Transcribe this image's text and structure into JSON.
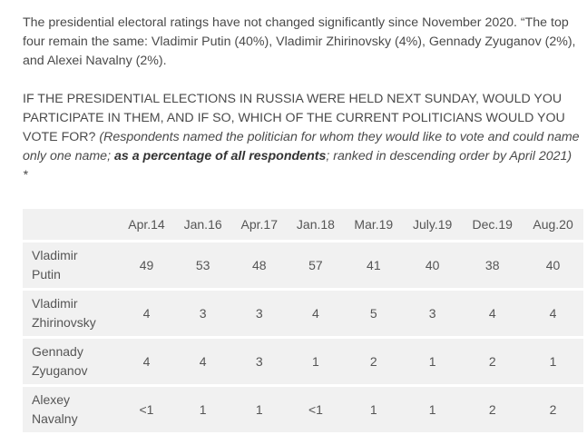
{
  "intro": "The presidential electoral ratings have not changed significantly since November 2020. “The top four remain the same: Vladimir Putin (40%), Vladimir Zhirinovsky (4%), Gennady Zyuganov (2%), and Alexei Navalny (2%).",
  "question": {
    "caps": "IF THE PRESIDENTIAL ELECTIONS IN RUSSIA WERE HELD NEXT SUNDAY, WOULD YOU PARTICIPATE IN THEM, AND IF SO, WHICH OF THE CURRENT POLITICIANS WOULD YOU VOTE FOR?",
    "note_a": "(Respondents named the politician for whom they would like to vote and could name only one name;",
    "note_bold": "as a percentage of all respondents",
    "note_b": "; ranked in descending order by April 2021) *"
  },
  "table": {
    "headers": [
      "",
      "Apr.14",
      "Jan.16",
      "Apr.17",
      "Jan.18",
      "Mar.19",
      "July.19",
      "Dec.19",
      "Aug.20"
    ],
    "rows": [
      {
        "name": [
          "Vladimir",
          "Putin"
        ],
        "values": [
          "49",
          "53",
          "48",
          "57",
          "41",
          "40",
          "38",
          "40"
        ]
      },
      {
        "name": [
          "Vladimir",
          "Zhirinovsky"
        ],
        "values": [
          "4",
          "3",
          "3",
          "4",
          "5",
          "3",
          "4",
          "4"
        ]
      },
      {
        "name": [
          "Gennady",
          "Zyuganov"
        ],
        "values": [
          "4",
          "4",
          "3",
          "1",
          "2",
          "1",
          "2",
          "1"
        ]
      },
      {
        "name": [
          "Alexey",
          "Navalny"
        ],
        "values": [
          "<1",
          "1",
          "1",
          "<1",
          "1",
          "1",
          "2",
          "2"
        ]
      }
    ]
  }
}
